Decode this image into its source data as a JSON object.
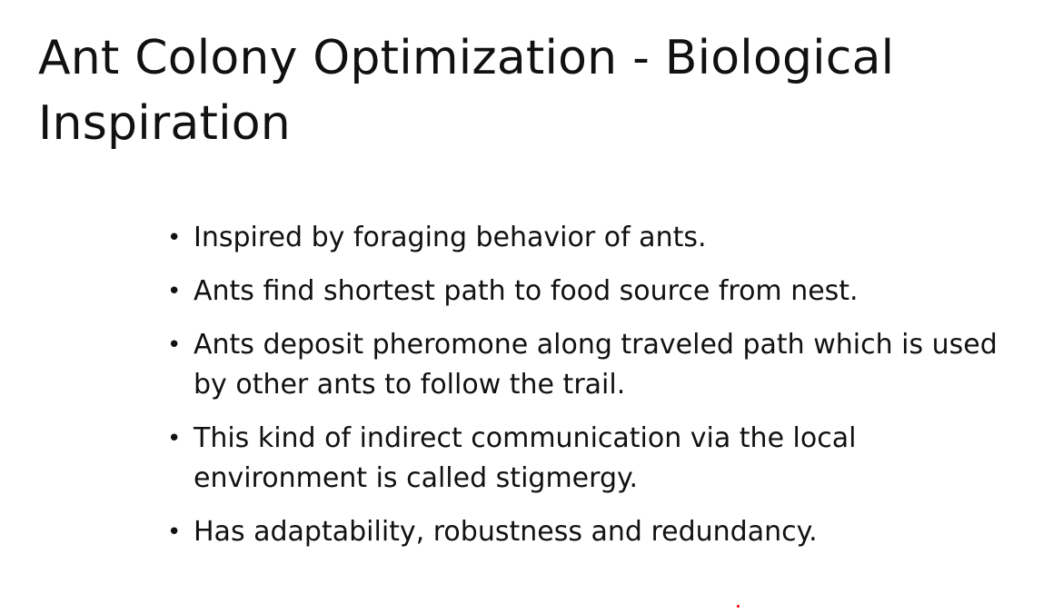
{
  "slide": {
    "title": "Ant Colony Optimization - Biological Inspiration",
    "bullet_symbol": "•",
    "bullets": [
      "Inspired by foraging behavior of ants.",
      "Ants find shortest path to food source from nest.",
      "Ants deposit pheromone along traveled path which is used by other ants to follow the trail.",
      "This kind of indirect communication via the local environment is called stigmergy.",
      "Has adaptability, robustness and redundancy."
    ]
  },
  "colors": {
    "background": "#ffffff",
    "text": "#111111",
    "pointer_dot": "#ff0000"
  }
}
